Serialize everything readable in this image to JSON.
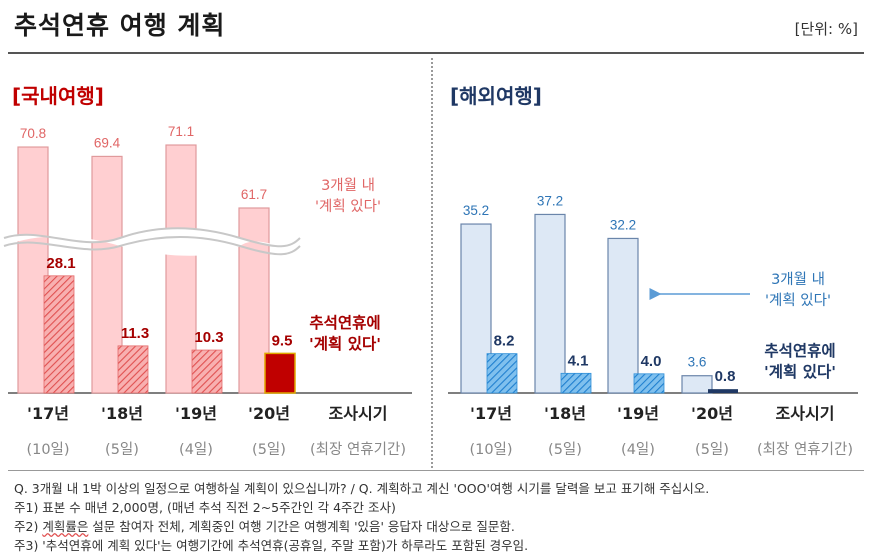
{
  "header": {
    "title": "추석연휴 여행 계획",
    "unit": "[단위: %]"
  },
  "colors": {
    "dom_outer_fill": "#ffcfd1",
    "dom_outer_stroke": "#e09a9c",
    "dom_hatch": "#e46a6a",
    "dom_highlight_fill": "#c00000",
    "dom_highlight_stroke": "#e0a800",
    "dom_label": "#e06666",
    "dom_inner_label": "#a50000",
    "int_outer_fill": "#dde8f5",
    "int_outer_stroke": "#6a85aa",
    "int_hatch": "#2f8fd8",
    "int_highlight_fill": "#1f3864",
    "int_label": "#2e75b6",
    "int_inner_label": "#1f3864"
  },
  "chart_data": [
    {
      "type": "bar",
      "title": "[국내여행]",
      "categories": [
        "'17년",
        "'18년",
        "'19년",
        "'20년"
      ],
      "sublabels": [
        "(10일)",
        "(5일)",
        "(4일)",
        "(5일)"
      ],
      "axis_label": "조사시기",
      "axis_sublabel": "(최장 연휴기간)",
      "series": [
        {
          "name": "3개월 내 '계획 있다'",
          "values": [
            70.8,
            69.4,
            71.1,
            61.7
          ]
        },
        {
          "name": "추석연휴에 '계획 있다'",
          "values": [
            28.1,
            11.3,
            10.3,
            9.5
          ]
        }
      ],
      "annotations": {
        "outer": [
          "3개월 내",
          "'계획 있다'"
        ],
        "inner": [
          "추석연휴에",
          "'계획 있다'"
        ]
      },
      "axis_break": true
    },
    {
      "type": "bar",
      "title": "[해외여행]",
      "categories": [
        "'17년",
        "'18년",
        "'19년",
        "'20년"
      ],
      "sublabels": [
        "(10일)",
        "(5일)",
        "(4일)",
        "(5일)"
      ],
      "axis_label": "조사시기",
      "axis_sublabel": "(최장 연휴기간)",
      "series": [
        {
          "name": "3개월 내 '계획 있다'",
          "values": [
            35.2,
            37.2,
            32.2,
            3.6
          ]
        },
        {
          "name": "추석연휴에 '계획 있다'",
          "values": [
            8.2,
            4.1,
            4.0,
            0.8
          ]
        }
      ],
      "annotations": {
        "outer": [
          "3개월 내",
          "'계획 있다'"
        ],
        "inner": [
          "추석연휴에",
          "'계획 있다'"
        ]
      },
      "axis_break": false
    }
  ],
  "footnotes": {
    "q": "Q. 3개월 내 1박 이상의 일정으로 여행하실 계획이 있으십니까? / Q. 계획하고 계신 'OOO'여행 시기를 달력을 보고 표기해 주십시오.",
    "n1": "주1) 표본 수 매년 2,000명, (매년 추석 직전 2~5주간인 각 4주간 조사)",
    "n2_prefix": "주2) ",
    "n2_wavy": "계획률은",
    "n2_rest": " 설문 참여자 전체, 계획중인 여행 기간은 여행계획 '있음' 응답자 대상으로 질문함.",
    "n3": "주3) '추석연휴에 계획 있다'는 여행기간에 추석연휴(공휴일, 주말 포함)가 하루라도 포함된 경우임."
  }
}
